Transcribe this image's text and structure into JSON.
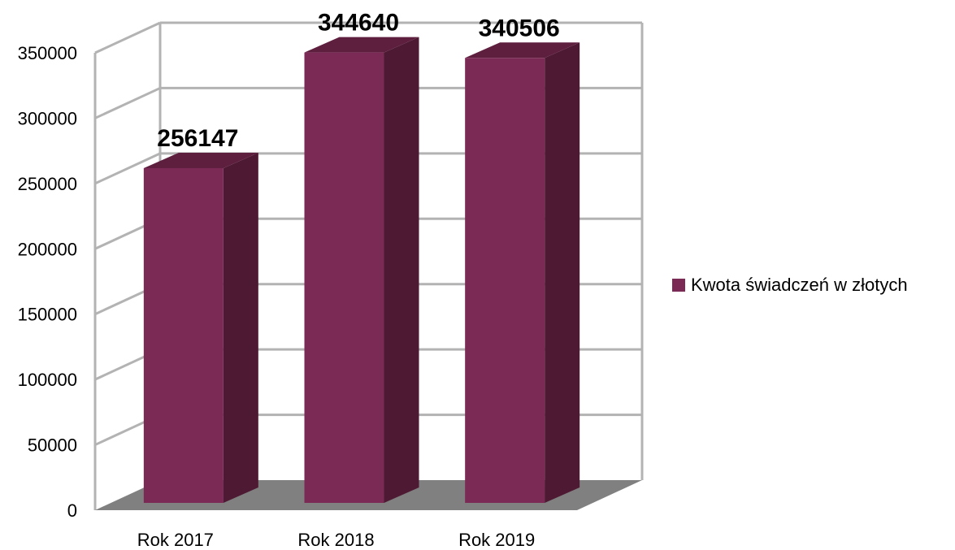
{
  "chart_data": {
    "type": "bar",
    "categories": [
      "Rok 2017",
      "Rok 2018",
      "Rok 2019"
    ],
    "series": [
      {
        "name": "Kwota świadczeń w złotych",
        "values": [
          256147,
          344640,
          340506
        ]
      }
    ],
    "data_labels": [
      "256147",
      "344640",
      "340506"
    ],
    "y_ticks": [
      "0",
      "50000",
      "100000",
      "150000",
      "200000",
      "250000",
      "300000",
      "350000"
    ],
    "ylim": [
      0,
      350000
    ],
    "grid": true,
    "legend_position": "right",
    "style": "3d",
    "colors": {
      "bar_front": "#7b2a55",
      "bar_side": "#4e1a33",
      "bar_top": "#5e1f3f",
      "floor": "#808080",
      "grid": "#b3b3b3"
    }
  },
  "legend": {
    "label": "Kwota świadczeń w złotych"
  }
}
